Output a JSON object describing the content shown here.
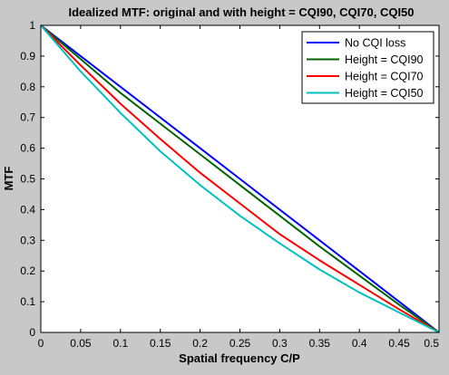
{
  "chart_data": {
    "type": "line",
    "title": "Idealized MTF: original and with height = CQI90, CQI70, CQI50",
    "xlabel": "Spatial frequency C/P",
    "ylabel": "MTF",
    "xlim": [
      0,
      0.5
    ],
    "ylim": [
      0,
      1
    ],
    "xticks": [
      "0",
      "0.05",
      "0.1",
      "0.15",
      "0.2",
      "0.25",
      "0.3",
      "0.35",
      "0.4",
      "0.45",
      "0.5"
    ],
    "yticks": [
      "0",
      "0.1",
      "0.2",
      "0.3",
      "0.4",
      "0.5",
      "0.6",
      "0.7",
      "0.8",
      "0.9",
      "1"
    ],
    "grid": false,
    "legend_position": "top-right",
    "x": [
      0,
      0.05,
      0.1,
      0.15,
      0.2,
      0.25,
      0.3,
      0.35,
      0.4,
      0.45,
      0.5
    ],
    "series": [
      {
        "name": "No CQI loss",
        "color": "#0000ff",
        "values": [
          1.0,
          0.9,
          0.8,
          0.7,
          0.6,
          0.5,
          0.4,
          0.3,
          0.2,
          0.1,
          0.0
        ]
      },
      {
        "name": "Height = CQI90",
        "color": "#006400",
        "values": [
          1.0,
          0.89,
          0.78,
          0.68,
          0.58,
          0.48,
          0.38,
          0.28,
          0.185,
          0.09,
          0.0
        ]
      },
      {
        "name": "Height = CQI70",
        "color": "#ff0000",
        "values": [
          1.0,
          0.87,
          0.745,
          0.63,
          0.52,
          0.42,
          0.32,
          0.235,
          0.155,
          0.075,
          0.0
        ]
      },
      {
        "name": "Height = CQI50",
        "color": "#00c0c0",
        "values": [
          1.0,
          0.85,
          0.715,
          0.59,
          0.48,
          0.38,
          0.29,
          0.205,
          0.13,
          0.065,
          0.0
        ]
      }
    ]
  }
}
